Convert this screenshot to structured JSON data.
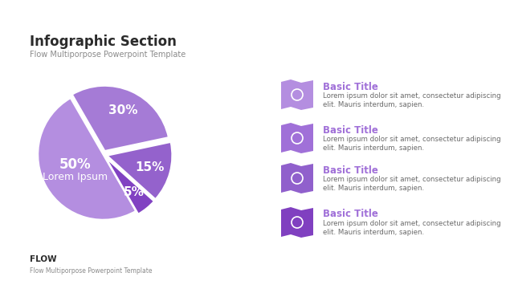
{
  "header": {
    "title": "Infographic Section",
    "subtitle": "Flow Multiporpose Powerpoint Template"
  },
  "chart_data": {
    "type": "pie",
    "categories": [
      "Lorem Ipsum",
      null,
      null,
      null
    ],
    "values": [
      50,
      30,
      15,
      5
    ],
    "value_labels": [
      "50%",
      "30%",
      "15%",
      "5%"
    ],
    "colors": [
      "#b48ee0",
      "#a57bd6",
      "#9462cc",
      "#8142c2"
    ],
    "data_labels": true
  },
  "items": [
    {
      "title": "Basic Title",
      "text": "Lorem ipsum dolor sit amet, consectetur adipiscing elit. Mauris interdum, sapien."
    },
    {
      "title": "Basic Title",
      "text": "Lorem ipsum dolor sit amet, consectetur adipiscing elit. Mauris interdum, sapien."
    },
    {
      "title": "Basic Title",
      "text": "Lorem ipsum dolor sit amet, consectetur adipiscing elit. Mauris interdum, sapien."
    },
    {
      "title": "Basic Title",
      "text": "Lorem ipsum dolor sit amet, consectetur adipiscing elit. Mauris interdum, sapien."
    }
  ],
  "footer": {
    "title": "FLOW",
    "subtitle": "Flow Multiporpose Powerpoint Template"
  }
}
